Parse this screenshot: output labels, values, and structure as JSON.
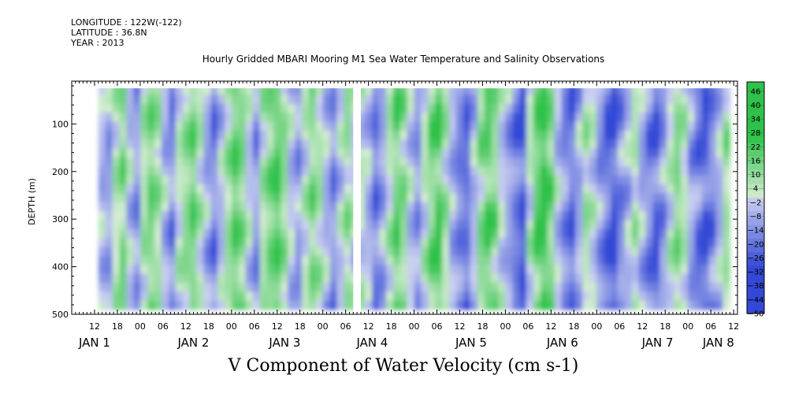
{
  "header": {
    "longitude": "LONGITUDE : 122W(-122)",
    "latitude": "LATITUDE : 36.8N",
    "year": "YEAR : 2013"
  },
  "chart_data": {
    "type": "heatmap",
    "title": "Hourly Gridded MBARI Mooring M1 Sea Water Temperature and Salinity Observations",
    "variable_label": "V Component of Water Velocity (cm s-1)",
    "ylabel": "DEPTH (m)",
    "y_range": [
      10,
      500
    ],
    "y_ticks": [
      100,
      200,
      300,
      400,
      500
    ],
    "y_inverted": true,
    "x_hour_ticks": [
      "12",
      "18",
      "00",
      "06",
      "12",
      "18",
      "00",
      "06",
      "12",
      "18",
      "00",
      "06",
      "12",
      "18",
      "00",
      "06",
      "12",
      "18",
      "00",
      "06",
      "12",
      "18",
      "00",
      "06",
      "12",
      "18",
      "00",
      "06",
      "12",
      "18",
      "00",
      "06",
      "12",
      "18",
      "00",
      "06",
      "12",
      "18",
      "00",
      "06",
      "12",
      "18",
      "00",
      "06",
      "12",
      "18",
      "00",
      "06",
      "12",
      "18",
      "00",
      "06",
      "12",
      "18",
      "00",
      "06",
      "12",
      "18",
      "00",
      "06",
      "12",
      "18",
      "00",
      "06",
      "12",
      "18",
      "00",
      "06",
      "12",
      "18",
      "00",
      "06",
      "12",
      "18",
      "00",
      "06",
      "12",
      "18",
      "00",
      "06",
      "12",
      "18",
      "00",
      "06"
    ],
    "x_date_labels": [
      {
        "text": "JAN  1",
        "hour": 12
      },
      {
        "text": "JAN  2",
        "hour": 38
      },
      {
        "text": "JAN  3",
        "hour": 62
      },
      {
        "text": "JAN  4",
        "hour": 85
      },
      {
        "text": "JAN  5",
        "hour": 111
      },
      {
        "text": "JAN  6",
        "hour": 135
      },
      {
        "text": "JAN  7",
        "hour": 160
      },
      {
        "text": "JAN  8",
        "hour": 176
      }
    ],
    "x_range_hours": [
      6,
      181
    ],
    "data_range_hours": [
      13,
      179
    ],
    "gaps_hours": [
      [
        80,
        82
      ]
    ],
    "colorbar": {
      "levels": [
        46,
        40,
        34,
        28,
        22,
        16,
        10,
        4,
        -2,
        -8,
        -14,
        -20,
        -26,
        -32,
        -38,
        -44,
        -50
      ],
      "min": -50,
      "max": 50,
      "positive_color": "#2ec24a",
      "negative_color": "#3348d6",
      "neutral_color": "#ccd2f0"
    },
    "columns_v": [
      -6,
      -10,
      4,
      12,
      -4,
      -12,
      6,
      14,
      8,
      -6,
      -14,
      2,
      10,
      16,
      4,
      -8,
      -16,
      -4,
      8,
      18,
      12,
      -2,
      -12,
      6,
      14,
      20,
      10,
      -4,
      -10,
      2,
      12,
      6,
      -6,
      -14,
      -2,
      8,
      0,
      0,
      -6,
      -18,
      -10,
      4,
      16,
      10,
      -4,
      -12,
      2,
      14,
      20,
      6,
      -8,
      -16,
      -20,
      -6,
      10,
      18,
      12,
      -2,
      -10,
      -18,
      -24,
      2,
      18,
      26,
      14,
      -4,
      -14,
      -20,
      -8,
      6,
      0,
      -12,
      -20,
      -26,
      -14,
      -6,
      4,
      -8,
      -16,
      -22,
      -12,
      2,
      12,
      4,
      -10,
      -18,
      -24,
      -16,
      -6,
      8
    ]
  }
}
